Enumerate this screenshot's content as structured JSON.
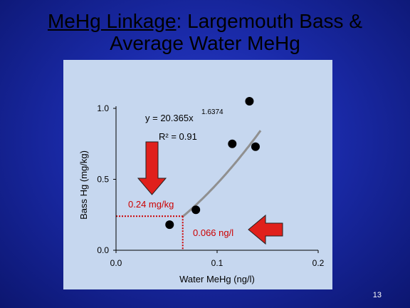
{
  "title": {
    "underlined": "MeHg Linkage",
    "rest_line1": ": Largemouth Bass &",
    "line2": "Average Water MeHg"
  },
  "page_number": "13",
  "colors": {
    "background": "#1a2aa8",
    "plot_panel": "#c6d7ef",
    "arrow": "#e0201b",
    "reference_line": "#cc0000",
    "trend_line": "#909090",
    "points": "#000000"
  },
  "chart_data": {
    "type": "scatter",
    "title": "",
    "xlabel": "Water MeHg (ng/l)",
    "ylabel": "Bass Hg (mg/kg)",
    "xlim": [
      0.0,
      0.2
    ],
    "ylim": [
      0.0,
      1.0
    ],
    "x_ticks": [
      {
        "value": 0.0,
        "label": "0.0"
      },
      {
        "value": 0.1,
        "label": "0.1"
      },
      {
        "value": 0.2,
        "label": "0.2"
      }
    ],
    "y_ticks": [
      {
        "value": 0.0,
        "label": "0.0"
      },
      {
        "value": 0.5,
        "label": "0.5"
      },
      {
        "value": 1.0,
        "label": "1.0"
      }
    ],
    "grid": false,
    "points": [
      {
        "x": 0.053,
        "y": 0.18
      },
      {
        "x": 0.079,
        "y": 0.285
      },
      {
        "x": 0.115,
        "y": 0.75
      },
      {
        "x": 0.132,
        "y": 1.05
      },
      {
        "x": 0.138,
        "y": 0.73
      }
    ],
    "trend": {
      "equation_prefix": "y = 20.365x",
      "exponent": "1.6374",
      "r_squared": "R² = 0.91",
      "coefficient": 20.365,
      "power": 1.6374,
      "x_range": [
        0.066,
        0.143
      ]
    },
    "annotations": {
      "fish_label": "0.24 mg/kg",
      "fish_value": 0.24,
      "water_label": "0.066 ng/l",
      "water_value": 0.066
    }
  }
}
